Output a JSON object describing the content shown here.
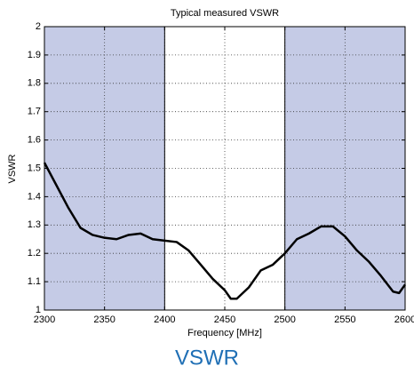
{
  "chart_data": {
    "type": "line",
    "title": "Typical measured VSWR",
    "xlabel": "Frequency [MHz]",
    "ylabel": "VSWR",
    "caption": "VSWR",
    "x": [
      2300,
      2310,
      2320,
      2330,
      2340,
      2350,
      2360,
      2370,
      2380,
      2390,
      2400,
      2410,
      2420,
      2430,
      2440,
      2450,
      2455,
      2460,
      2470,
      2480,
      2490,
      2500,
      2510,
      2520,
      2530,
      2540,
      2550,
      2560,
      2570,
      2580,
      2590,
      2595,
      2600
    ],
    "series": [
      {
        "color": "#000000",
        "values": [
          1.52,
          1.44,
          1.36,
          1.29,
          1.265,
          1.255,
          1.25,
          1.265,
          1.27,
          1.25,
          1.245,
          1.24,
          1.21,
          1.16,
          1.11,
          1.07,
          1.04,
          1.04,
          1.08,
          1.14,
          1.16,
          1.2,
          1.25,
          1.27,
          1.295,
          1.295,
          1.26,
          1.21,
          1.17,
          1.12,
          1.065,
          1.06,
          1.09
        ]
      }
    ],
    "shaded_regions": [
      [
        2300,
        2400
      ],
      [
        2500,
        2600
      ]
    ],
    "shade_color": "#c5cbe6",
    "xlim": [
      2300,
      2600
    ],
    "xticks": [
      2300,
      2350,
      2400,
      2450,
      2500,
      2550,
      2600
    ],
    "ylim": [
      1,
      2
    ],
    "yticks": [
      1,
      1.1,
      1.2,
      1.3,
      1.4,
      1.5,
      1.6,
      1.7,
      1.8,
      1.9,
      2
    ],
    "grid": true
  }
}
